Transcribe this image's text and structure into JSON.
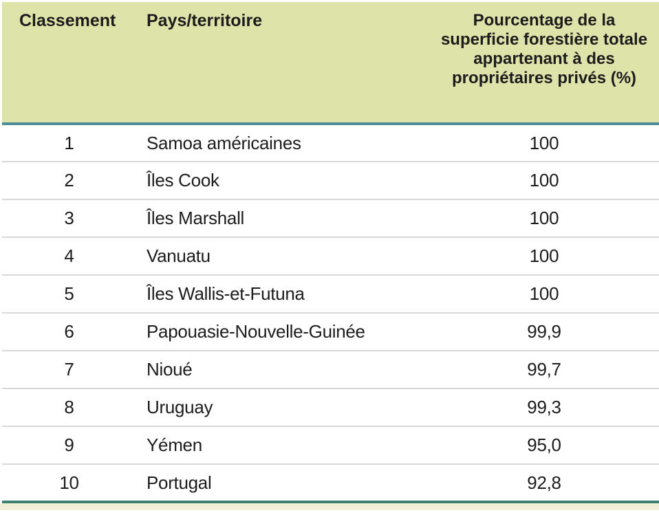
{
  "colors": {
    "header_bg": "#dee3a9",
    "header_rule": "#4f8d98",
    "bottom_rule": "#3d8170",
    "bottom_strip": "#f1efd8",
    "row_divider": "#d9d9d9",
    "text": "#1c1c1c"
  },
  "table": {
    "columns": [
      {
        "id": "rank",
        "label": "Classement"
      },
      {
        "id": "country",
        "label": "Pays/territoire"
      },
      {
        "id": "value",
        "label": "Pourcentage de la superficie forestière totale appartenant à des propriétaires privés (%)"
      }
    ],
    "rows": [
      {
        "rank": "1",
        "country": "Samoa américaines",
        "value": "100"
      },
      {
        "rank": "2",
        "country": "Îles Cook",
        "value": "100"
      },
      {
        "rank": "3",
        "country": "Îles Marshall",
        "value": "100"
      },
      {
        "rank": "4",
        "country": "Vanuatu",
        "value": "100"
      },
      {
        "rank": "5",
        "country": "Îles Wallis-et-Futuna",
        "value": "100"
      },
      {
        "rank": "6",
        "country": "Papouasie-Nouvelle-Guinée",
        "value": "99,9"
      },
      {
        "rank": "7",
        "country": "Nioué",
        "value": "99,7"
      },
      {
        "rank": "8",
        "country": "Uruguay",
        "value": "99,3"
      },
      {
        "rank": "9",
        "country": "Yémen",
        "value": "95,0"
      },
      {
        "rank": "10",
        "country": "Portugal",
        "value": "92,8"
      }
    ]
  },
  "chart_data": {
    "type": "table",
    "columns": [
      "Classement",
      "Pays/territoire",
      "Pourcentage de la superficie forestière totale appartenant à des propriétaires privés (%)"
    ],
    "rows": [
      [
        "1",
        "Samoa américaines",
        100.0
      ],
      [
        "2",
        "Îles Cook",
        100.0
      ],
      [
        "3",
        "Îles Marshall",
        100.0
      ],
      [
        "4",
        "Vanuatu",
        100.0
      ],
      [
        "5",
        "Îles Wallis-et-Futuna",
        100.0
      ],
      [
        "6",
        "Papouasie-Nouvelle-Guinée",
        99.9
      ],
      [
        "7",
        "Nioué",
        99.7
      ],
      [
        "8",
        "Uruguay",
        99.3
      ],
      [
        "9",
        "Yémen",
        95.0
      ],
      [
        "10",
        "Portugal",
        92.8
      ]
    ]
  }
}
